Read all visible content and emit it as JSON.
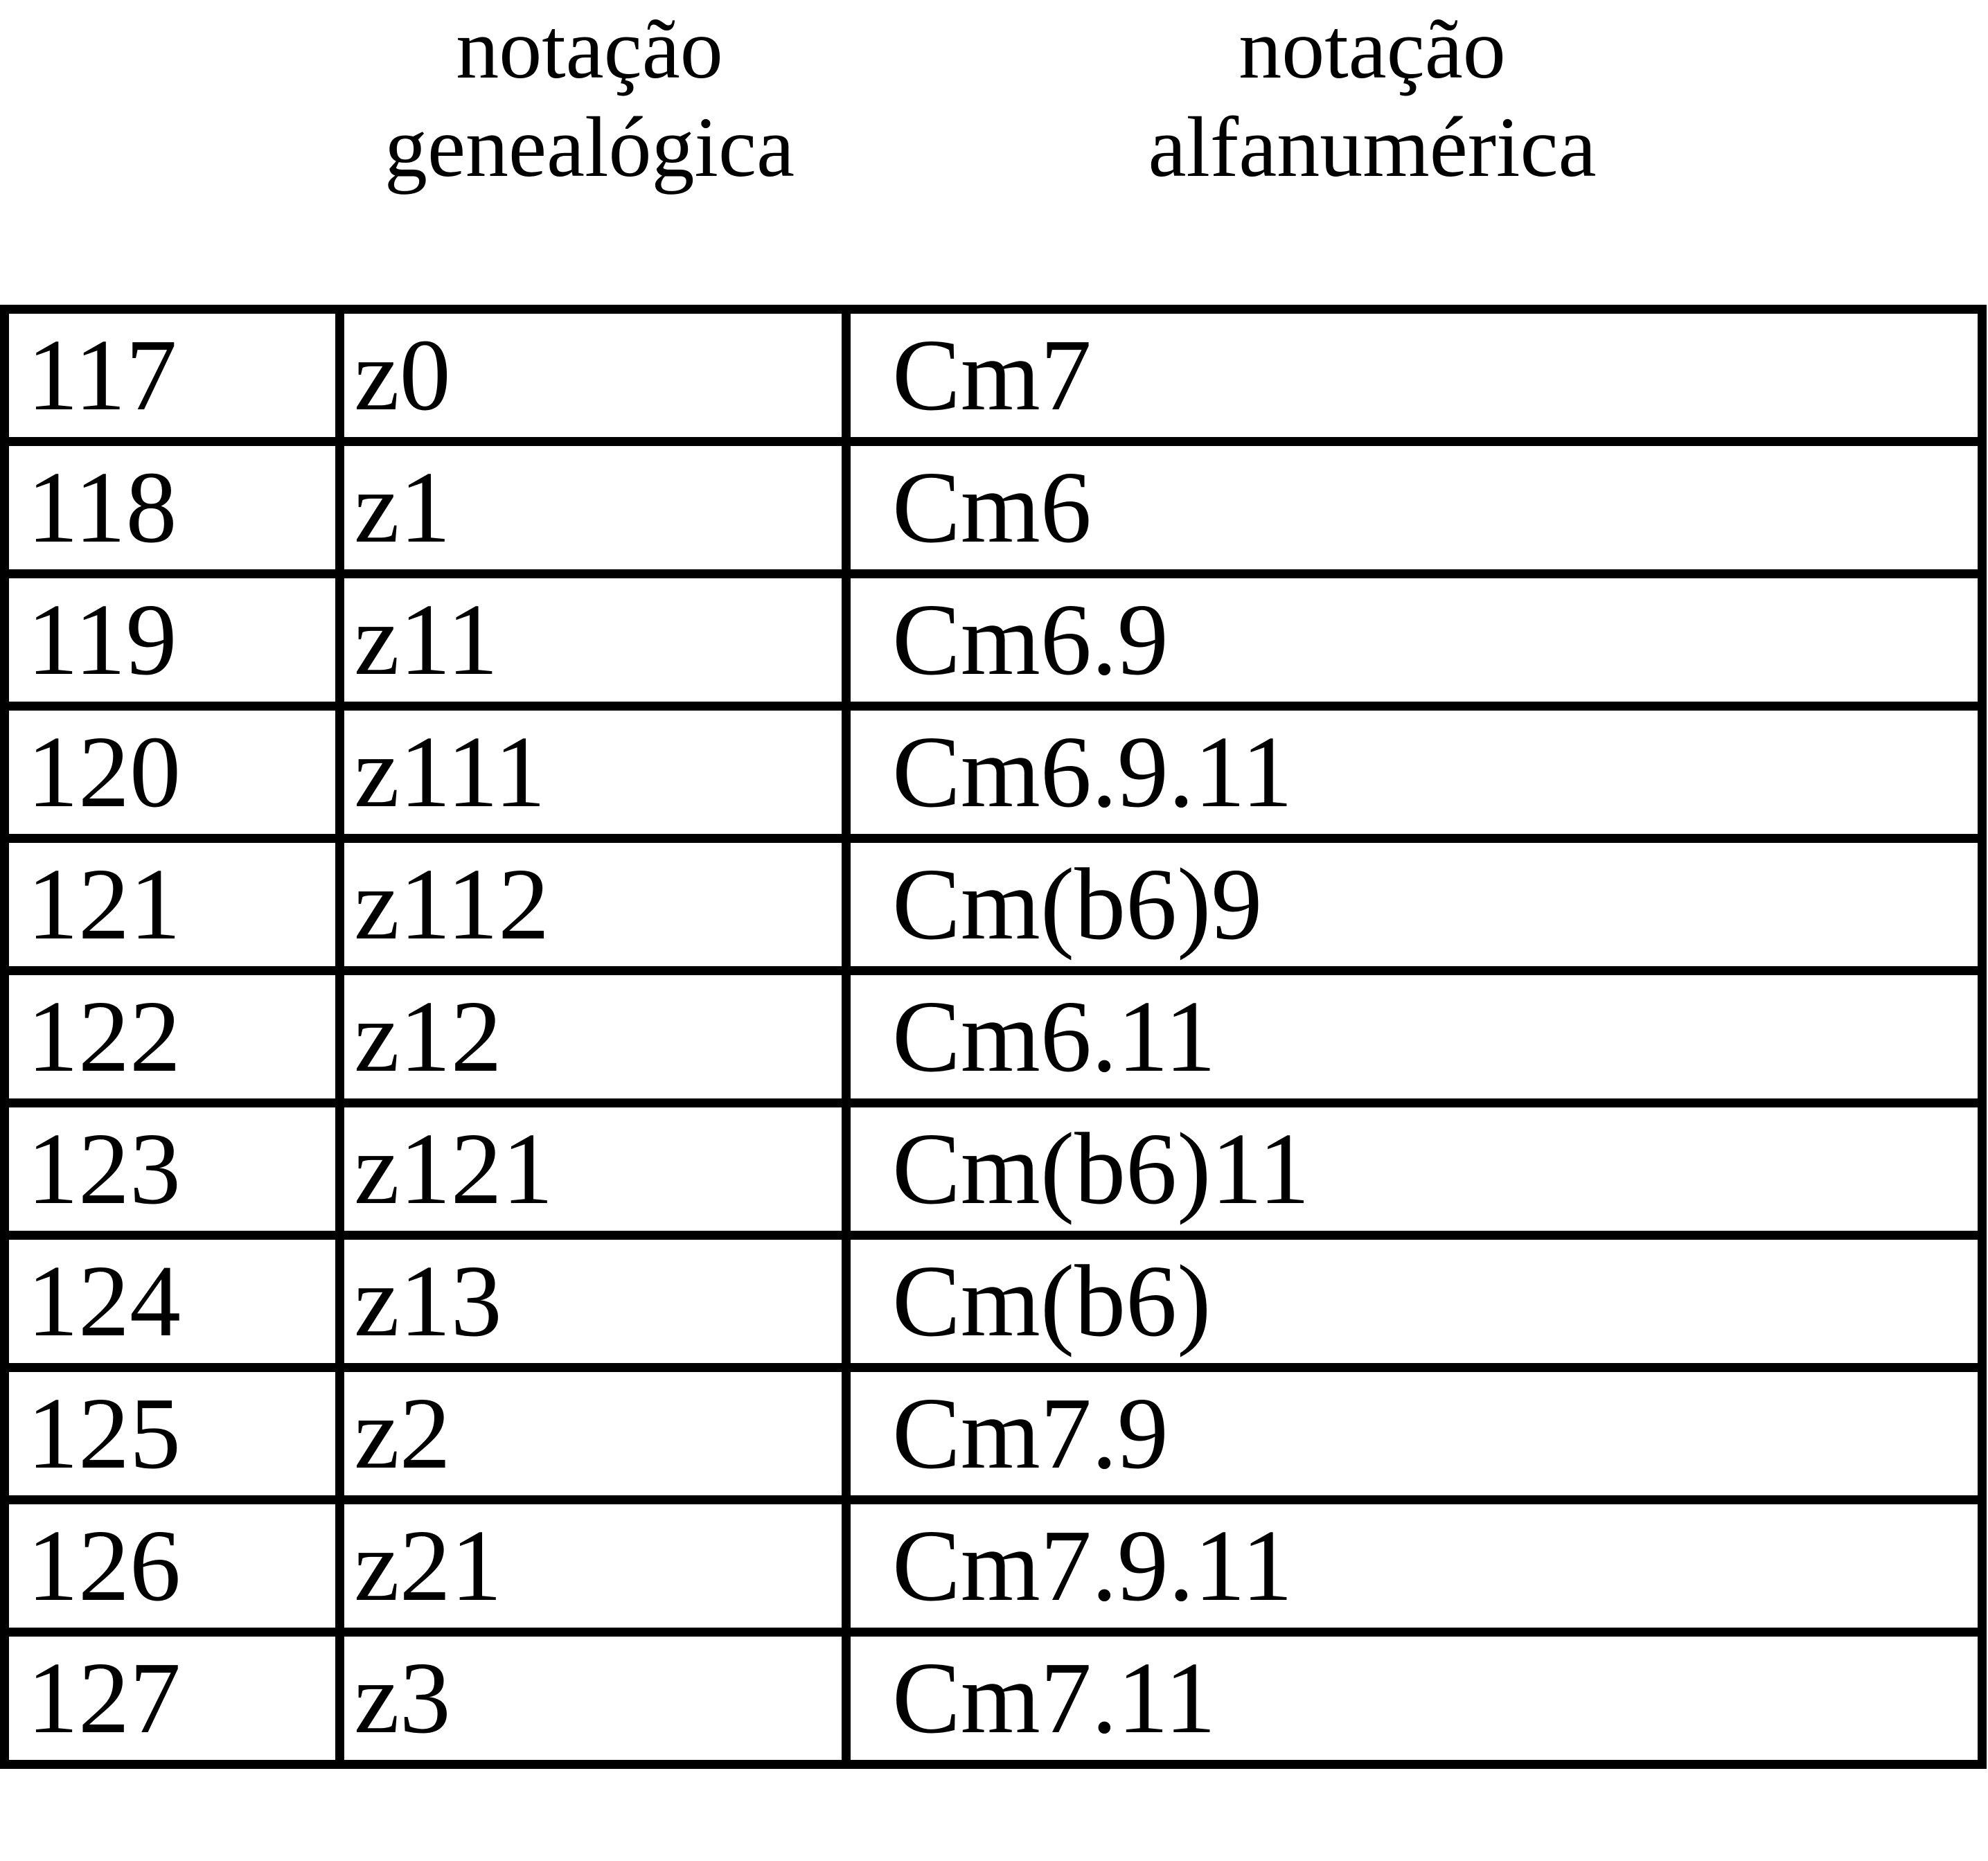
{
  "header": {
    "col2": [
      "notação",
      "genealógica"
    ],
    "col3": [
      "notação",
      "alfanumérica"
    ]
  },
  "rows": [
    {
      "num": "117",
      "genealogica": "z0",
      "alfanumerica": "Cm7"
    },
    {
      "num": "118",
      "genealogica": "z1",
      "alfanumerica": "Cm6"
    },
    {
      "num": "119",
      "genealogica": "z11",
      "alfanumerica": "Cm6.9"
    },
    {
      "num": "120",
      "genealogica": "z111",
      "alfanumerica": "Cm6.9.11"
    },
    {
      "num": "121",
      "genealogica": "z112",
      "alfanumerica": "Cm(b6)9"
    },
    {
      "num": "122",
      "genealogica": "z12",
      "alfanumerica": "Cm6.11"
    },
    {
      "num": "123",
      "genealogica": "z121",
      "alfanumerica": "Cm(b6)11"
    },
    {
      "num": "124",
      "genealogica": "z13",
      "alfanumerica": "Cm(b6)"
    },
    {
      "num": "125",
      "genealogica": "z2",
      "alfanumerica": "Cm7.9"
    },
    {
      "num": "126",
      "genealogica": "z21",
      "alfanumerica": "Cm7.9.11"
    },
    {
      "num": "127",
      "genealogica": "z3",
      "alfanumerica": "Cm7.11"
    }
  ]
}
